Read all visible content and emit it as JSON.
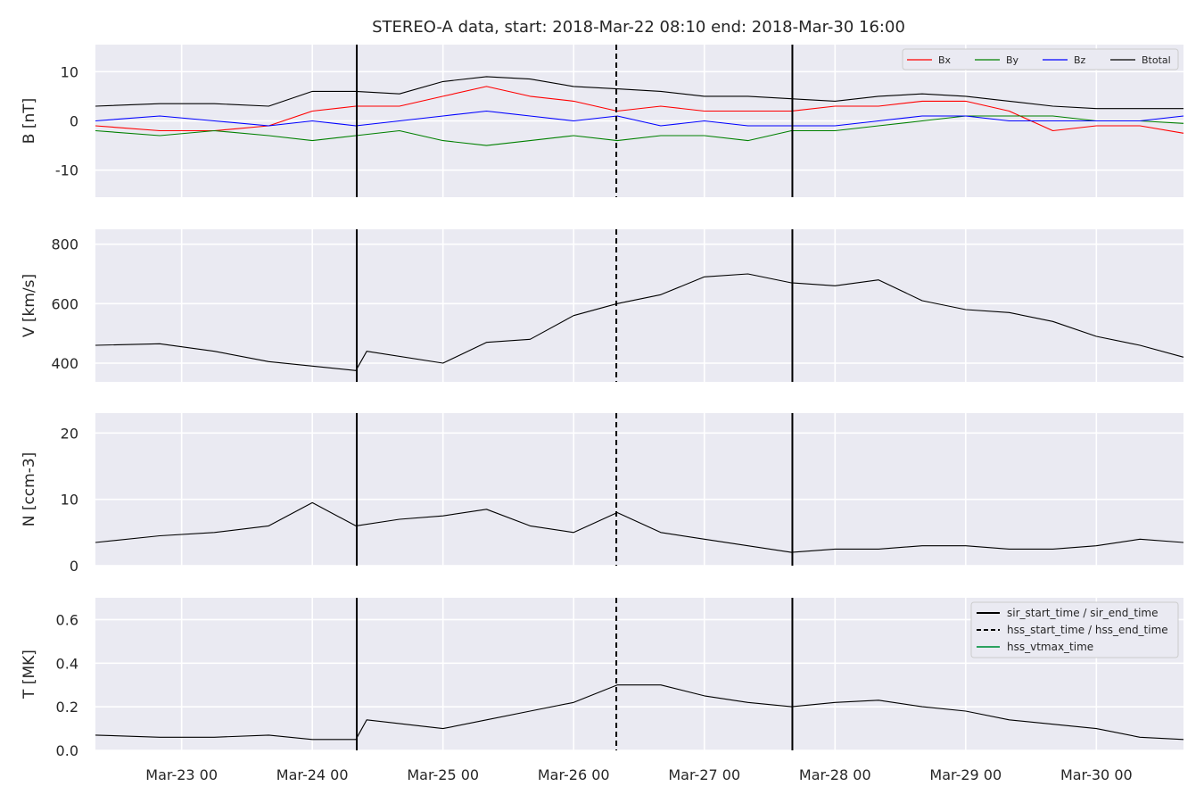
{
  "chart_data": {
    "type": "line",
    "title": "STEREO-A data, start: 2018-Mar-22 08:10  end: 2018-Mar-30 16:00",
    "xlim": [
      "2018-03-22 08:10",
      "2018-03-30 16:00"
    ],
    "x_ticks": [
      "2018-03-23 00:00",
      "2018-03-24 00:00",
      "2018-03-25 00:00",
      "2018-03-26 00:00",
      "2018-03-27 00:00",
      "2018-03-28 00:00",
      "2018-03-29 00:00",
      "2018-03-30 00:00"
    ],
    "x_tick_labels": [
      "Mar-23 00",
      "Mar-24 00",
      "Mar-25 00",
      "Mar-26 00",
      "Mar-27 00",
      "Mar-28 00",
      "Mar-29 00",
      "Mar-30 00"
    ],
    "grid": true,
    "event_lines": [
      {
        "time": "2018-03-24 08:10",
        "style": "solid"
      },
      {
        "time": "2018-03-26 07:50",
        "style": "dashed"
      },
      {
        "time": "2018-03-27 16:10",
        "style": "solid"
      }
    ],
    "event_legend": [
      {
        "label": "sir_start_time / sir_end_time",
        "style": "solid",
        "color": "#000000"
      },
      {
        "label": "hss_start_time / hss_end_time",
        "style": "dashed",
        "color": "#000000"
      },
      {
        "label": "hss_vtmax_time",
        "style": "solid",
        "color": "#2ca25f"
      }
    ],
    "panels": [
      {
        "ylabel": "B [nT]",
        "ylim": [
          -15.5,
          15.5
        ],
        "yticks": [
          -10,
          0,
          10
        ],
        "legend_position": "top-right",
        "series": [
          {
            "name": "Bx",
            "color": "#ff0000",
            "x": [
              "2018-03-22 08:10",
              "2018-03-22 20:00",
              "2018-03-23 06:00",
              "2018-03-23 16:00",
              "2018-03-24 00:00",
              "2018-03-24 08:00",
              "2018-03-24 16:00",
              "2018-03-25 00:00",
              "2018-03-25 08:00",
              "2018-03-25 16:00",
              "2018-03-26 00:00",
              "2018-03-26 08:00",
              "2018-03-26 16:00",
              "2018-03-27 00:00",
              "2018-03-27 08:00",
              "2018-03-27 16:00",
              "2018-03-28 00:00",
              "2018-03-28 08:00",
              "2018-03-28 16:00",
              "2018-03-29 00:00",
              "2018-03-29 08:00",
              "2018-03-29 16:00",
              "2018-03-30 00:00",
              "2018-03-30 08:00",
              "2018-03-30 16:00"
            ],
            "values": [
              -1,
              -2,
              -2,
              -1,
              2,
              3,
              3,
              5,
              7,
              5,
              4,
              2,
              3,
              2,
              2,
              2,
              3,
              3,
              4,
              4,
              2,
              -2,
              -1,
              -1,
              -2.5
            ]
          },
          {
            "name": "By",
            "color": "#008000",
            "x": [
              "2018-03-22 08:10",
              "2018-03-22 20:00",
              "2018-03-23 06:00",
              "2018-03-23 16:00",
              "2018-03-24 00:00",
              "2018-03-24 08:00",
              "2018-03-24 16:00",
              "2018-03-25 00:00",
              "2018-03-25 08:00",
              "2018-03-25 16:00",
              "2018-03-26 00:00",
              "2018-03-26 08:00",
              "2018-03-26 16:00",
              "2018-03-27 00:00",
              "2018-03-27 08:00",
              "2018-03-27 16:00",
              "2018-03-28 00:00",
              "2018-03-28 08:00",
              "2018-03-28 16:00",
              "2018-03-29 00:00",
              "2018-03-29 08:00",
              "2018-03-29 16:00",
              "2018-03-30 00:00",
              "2018-03-30 08:00",
              "2018-03-30 16:00"
            ],
            "values": [
              -2,
              -3,
              -2,
              -3,
              -4,
              -3,
              -2,
              -4,
              -5,
              -4,
              -3,
              -4,
              -3,
              -3,
              -4,
              -2,
              -2,
              -1,
              0,
              1,
              1,
              1,
              0,
              0,
              -0.5
            ]
          },
          {
            "name": "Bz",
            "color": "#0000ff",
            "x": [
              "2018-03-22 08:10",
              "2018-03-22 20:00",
              "2018-03-23 06:00",
              "2018-03-23 16:00",
              "2018-03-24 00:00",
              "2018-03-24 08:00",
              "2018-03-24 16:00",
              "2018-03-25 00:00",
              "2018-03-25 08:00",
              "2018-03-25 16:00",
              "2018-03-26 00:00",
              "2018-03-26 08:00",
              "2018-03-26 16:00",
              "2018-03-27 00:00",
              "2018-03-27 08:00",
              "2018-03-27 16:00",
              "2018-03-28 00:00",
              "2018-03-28 08:00",
              "2018-03-28 16:00",
              "2018-03-29 00:00",
              "2018-03-29 08:00",
              "2018-03-29 16:00",
              "2018-03-30 00:00",
              "2018-03-30 08:00",
              "2018-03-30 16:00"
            ],
            "values": [
              0,
              1,
              0,
              -1,
              0,
              -1,
              0,
              1,
              2,
              1,
              0,
              1,
              -1,
              0,
              -1,
              -1,
              -1,
              0,
              1,
              1,
              0,
              0,
              0,
              0,
              1
            ]
          },
          {
            "name": "Btotal",
            "color": "#000000",
            "x": [
              "2018-03-22 08:10",
              "2018-03-22 20:00",
              "2018-03-23 06:00",
              "2018-03-23 16:00",
              "2018-03-24 00:00",
              "2018-03-24 08:00",
              "2018-03-24 16:00",
              "2018-03-25 00:00",
              "2018-03-25 08:00",
              "2018-03-25 16:00",
              "2018-03-26 00:00",
              "2018-03-26 08:00",
              "2018-03-26 16:00",
              "2018-03-27 00:00",
              "2018-03-27 08:00",
              "2018-03-27 16:00",
              "2018-03-28 00:00",
              "2018-03-28 08:00",
              "2018-03-28 16:00",
              "2018-03-29 00:00",
              "2018-03-29 08:00",
              "2018-03-29 16:00",
              "2018-03-30 00:00",
              "2018-03-30 08:00",
              "2018-03-30 16:00"
            ],
            "values": [
              3,
              3.5,
              3.5,
              3,
              6,
              6,
              5.5,
              8,
              9,
              8.5,
              7,
              6.5,
              6,
              5,
              5,
              4.5,
              4,
              5,
              5.5,
              5,
              4,
              3,
              2.5,
              2.5,
              2.5
            ]
          }
        ]
      },
      {
        "ylabel": "V [km/s]",
        "ylim": [
          337,
          850
        ],
        "yticks": [
          400,
          600,
          800
        ],
        "series": [
          {
            "name": "",
            "color": "#000000",
            "x": [
              "2018-03-22 08:10",
              "2018-03-22 20:00",
              "2018-03-23 06:00",
              "2018-03-23 16:00",
              "2018-03-24 00:00",
              "2018-03-24 08:00",
              "2018-03-24 10:00",
              "2018-03-25 00:00",
              "2018-03-25 08:00",
              "2018-03-25 16:00",
              "2018-03-26 00:00",
              "2018-03-26 08:00",
              "2018-03-26 16:00",
              "2018-03-27 00:00",
              "2018-03-27 08:00",
              "2018-03-27 16:00",
              "2018-03-28 00:00",
              "2018-03-28 08:00",
              "2018-03-28 16:00",
              "2018-03-29 00:00",
              "2018-03-29 08:00",
              "2018-03-29 16:00",
              "2018-03-30 00:00",
              "2018-03-30 08:00",
              "2018-03-30 16:00"
            ],
            "values": [
              460,
              465,
              440,
              405,
              390,
              375,
              440,
              400,
              470,
              480,
              560,
              600,
              630,
              690,
              700,
              670,
              660,
              680,
              610,
              580,
              570,
              540,
              490,
              460,
              420
            ]
          }
        ]
      },
      {
        "ylabel": "N [ccm-3]",
        "ylim": [
          0,
          23
        ],
        "yticks": [
          0,
          10,
          20
        ],
        "series": [
          {
            "name": "",
            "color": "#000000",
            "x": [
              "2018-03-22 08:10",
              "2018-03-22 20:00",
              "2018-03-23 06:00",
              "2018-03-23 16:00",
              "2018-03-24 00:00",
              "2018-03-24 08:00",
              "2018-03-24 16:00",
              "2018-03-25 00:00",
              "2018-03-25 08:00",
              "2018-03-25 16:00",
              "2018-03-26 00:00",
              "2018-03-26 08:00",
              "2018-03-26 16:00",
              "2018-03-27 00:00",
              "2018-03-27 08:00",
              "2018-03-27 16:00",
              "2018-03-28 00:00",
              "2018-03-28 08:00",
              "2018-03-28 16:00",
              "2018-03-29 00:00",
              "2018-03-29 08:00",
              "2018-03-29 16:00",
              "2018-03-30 00:00",
              "2018-03-30 08:00",
              "2018-03-30 16:00"
            ],
            "values": [
              3.5,
              4.5,
              5,
              6,
              9.5,
              6,
              7,
              7.5,
              8.5,
              6,
              5,
              8,
              5,
              4,
              3,
              2,
              2.5,
              2.5,
              3,
              3,
              2.5,
              2.5,
              3,
              4,
              3.5
            ]
          }
        ]
      },
      {
        "ylabel": "T [MK]",
        "ylim": [
          0,
          0.7
        ],
        "yticks": [
          0.0,
          0.2,
          0.4,
          0.6
        ],
        "legend_position": "top-right",
        "series": [
          {
            "name": "",
            "color": "#000000",
            "x": [
              "2018-03-22 08:10",
              "2018-03-22 20:00",
              "2018-03-23 06:00",
              "2018-03-23 16:00",
              "2018-03-24 00:00",
              "2018-03-24 08:00",
              "2018-03-24 10:00",
              "2018-03-25 00:00",
              "2018-03-25 08:00",
              "2018-03-25 16:00",
              "2018-03-26 00:00",
              "2018-03-26 08:00",
              "2018-03-26 16:00",
              "2018-03-27 00:00",
              "2018-03-27 08:00",
              "2018-03-27 16:00",
              "2018-03-28 00:00",
              "2018-03-28 08:00",
              "2018-03-28 16:00",
              "2018-03-29 00:00",
              "2018-03-29 08:00",
              "2018-03-29 16:00",
              "2018-03-30 00:00",
              "2018-03-30 08:00",
              "2018-03-30 16:00"
            ],
            "values": [
              0.07,
              0.06,
              0.06,
              0.07,
              0.05,
              0.05,
              0.14,
              0.1,
              0.14,
              0.18,
              0.22,
              0.3,
              0.3,
              0.25,
              0.22,
              0.2,
              0.22,
              0.23,
              0.2,
              0.18,
              0.14,
              0.12,
              0.1,
              0.06,
              0.05
            ]
          }
        ]
      }
    ]
  }
}
